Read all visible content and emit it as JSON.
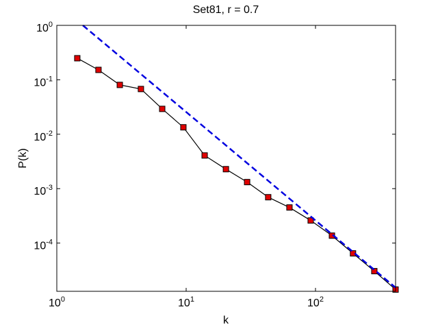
{
  "chart_data": {
    "type": "line",
    "title": "Set81, r = 0.7",
    "x_label": "k",
    "y_label": "P(k)",
    "xscale": "log",
    "yscale": "log",
    "xlim": [
      1,
      416
    ],
    "ylim": [
      1.3e-05,
      1
    ],
    "xticks": [
      {
        "value": 1,
        "label": "10^0"
      },
      {
        "value": 10,
        "label": "10^1"
      },
      {
        "value": 100,
        "label": "10^2"
      }
    ],
    "yticks": [
      {
        "value": 0.0001,
        "label": "10^-4"
      },
      {
        "value": 0.001,
        "label": "10^-3"
      },
      {
        "value": 0.01,
        "label": "10^-2"
      },
      {
        "value": 0.1,
        "label": "10^-1"
      },
      {
        "value": 1,
        "label": "10^0"
      }
    ],
    "series": [
      {
        "color": "#000000",
        "marker": "square",
        "marker_color": "#e00000",
        "x": [
          1.44,
          2.1,
          3.07,
          4.47,
          6.53,
          9.52,
          13.9,
          20.3,
          29.6,
          43.1,
          62.9,
          91.8,
          134,
          195,
          285,
          416
        ],
        "values": [
          0.249,
          0.152,
          0.0805,
          0.0677,
          0.0292,
          0.0134,
          0.00407,
          0.00228,
          0.00132,
          0.000696,
          0.000451,
          0.00026,
          0.000137,
          6.47e-05,
          3.05e-05,
          1.4e-05
        ]
      },
      {
        "color": "#0000e0",
        "dash": true,
        "x": [
          1.59,
          416
        ],
        "values": [
          1,
          1.52e-05
        ]
      }
    ]
  }
}
